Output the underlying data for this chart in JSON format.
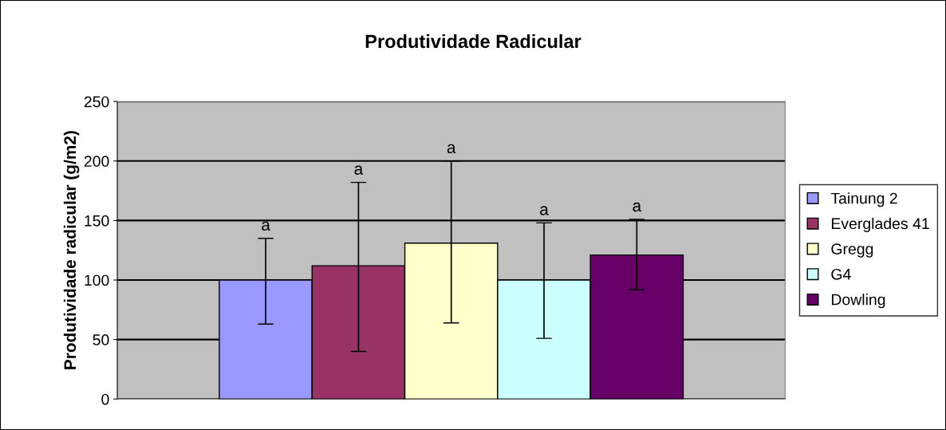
{
  "chart_data": {
    "type": "bar",
    "title": "Produtividade Radicular",
    "ylabel": "Produtividade radicular (g/m2)",
    "categories": [
      null
    ],
    "series": [
      {
        "name": "Tainung 2",
        "color": "#9999ff",
        "values": [
          100
        ],
        "errors": [
          [
            63,
            135
          ]
        ]
      },
      {
        "name": "Everglades 41",
        "color": "#993366",
        "values": [
          112
        ],
        "errors": [
          [
            40,
            182
          ]
        ]
      },
      {
        "name": "Gregg",
        "color": "#ffffcc",
        "values": [
          131
        ],
        "errors": [
          [
            64,
            200
          ]
        ]
      },
      {
        "name": "G4",
        "color": "#ccffff",
        "values": [
          100
        ],
        "errors": [
          [
            51,
            148
          ]
        ]
      },
      {
        "name": "Dowling",
        "color": "#660066",
        "values": [
          121
        ],
        "errors": [
          [
            92,
            151
          ]
        ]
      }
    ],
    "annotations": [
      {
        "text": "a",
        "y": 135
      },
      {
        "text": "a",
        "y": 182
      },
      {
        "text": "a",
        "y": 200
      },
      {
        "text": "a",
        "y": 148
      },
      {
        "text": "a",
        "y": 151
      }
    ],
    "ylim": [
      0,
      250
    ],
    "yticks": [
      0,
      50,
      100,
      150,
      200,
      250
    ],
    "grid": "y",
    "legend": "right"
  }
}
